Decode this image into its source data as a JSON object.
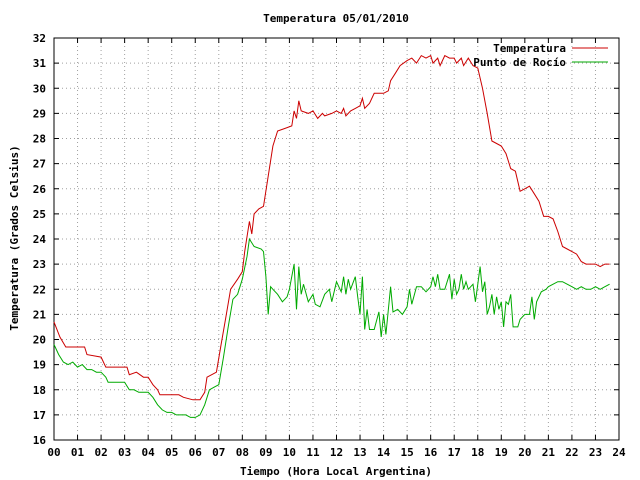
{
  "chart_data": {
    "type": "line",
    "title": "Temperatura 05/01/2010",
    "xlabel": "Tiempo (Hora Local Argentina)",
    "ylabel": "Temperatura (Grados Celsius)",
    "xlim": [
      0,
      24
    ],
    "ylim": [
      16,
      32
    ],
    "x_ticks": [
      "00",
      "01",
      "02",
      "03",
      "04",
      "05",
      "06",
      "07",
      "08",
      "09",
      "10",
      "11",
      "12",
      "13",
      "14",
      "15",
      "16",
      "17",
      "18",
      "19",
      "20",
      "21",
      "22",
      "23",
      "24"
    ],
    "y_ticks": [
      "16",
      "17",
      "18",
      "19",
      "20",
      "21",
      "22",
      "23",
      "24",
      "25",
      "26",
      "27",
      "28",
      "29",
      "30",
      "31",
      "32"
    ],
    "grid": true,
    "legend_position": "top-right",
    "series": [
      {
        "name": "Temperatura",
        "color": "#cc0000",
        "points": [
          [
            0.0,
            20.7
          ],
          [
            0.25,
            20.1
          ],
          [
            0.5,
            19.7
          ],
          [
            1.0,
            19.7
          ],
          [
            1.3,
            19.7
          ],
          [
            1.4,
            19.4
          ],
          [
            2.0,
            19.3
          ],
          [
            2.2,
            18.9
          ],
          [
            2.8,
            18.9
          ],
          [
            3.1,
            18.9
          ],
          [
            3.2,
            18.6
          ],
          [
            3.5,
            18.7
          ],
          [
            3.8,
            18.5
          ],
          [
            4.0,
            18.5
          ],
          [
            4.2,
            18.2
          ],
          [
            4.4,
            18.0
          ],
          [
            4.5,
            17.8
          ],
          [
            5.0,
            17.8
          ],
          [
            5.3,
            17.8
          ],
          [
            5.5,
            17.7
          ],
          [
            5.9,
            17.6
          ],
          [
            6.2,
            17.6
          ],
          [
            6.4,
            17.9
          ],
          [
            6.5,
            18.5
          ],
          [
            6.9,
            18.7
          ],
          [
            7.1,
            19.8
          ],
          [
            7.3,
            20.9
          ],
          [
            7.5,
            22.0
          ],
          [
            7.8,
            22.4
          ],
          [
            8.0,
            22.7
          ],
          [
            8.1,
            23.5
          ],
          [
            8.3,
            24.7
          ],
          [
            8.4,
            24.2
          ],
          [
            8.5,
            25.0
          ],
          [
            8.7,
            25.2
          ],
          [
            8.9,
            25.3
          ],
          [
            9.1,
            26.5
          ],
          [
            9.3,
            27.7
          ],
          [
            9.5,
            28.3
          ],
          [
            9.8,
            28.4
          ],
          [
            10.1,
            28.5
          ],
          [
            10.2,
            29.1
          ],
          [
            10.3,
            28.8
          ],
          [
            10.4,
            29.5
          ],
          [
            10.5,
            29.1
          ],
          [
            10.8,
            29.0
          ],
          [
            11.0,
            29.1
          ],
          [
            11.2,
            28.8
          ],
          [
            11.4,
            29.0
          ],
          [
            11.5,
            28.9
          ],
          [
            11.8,
            29.0
          ],
          [
            12.0,
            29.1
          ],
          [
            12.2,
            29.0
          ],
          [
            12.3,
            29.2
          ],
          [
            12.4,
            28.9
          ],
          [
            12.6,
            29.1
          ],
          [
            12.8,
            29.2
          ],
          [
            13.0,
            29.3
          ],
          [
            13.1,
            29.6
          ],
          [
            13.2,
            29.2
          ],
          [
            13.4,
            29.4
          ],
          [
            13.6,
            29.8
          ],
          [
            14.0,
            29.8
          ],
          [
            14.2,
            29.9
          ],
          [
            14.3,
            30.3
          ],
          [
            14.5,
            30.6
          ],
          [
            14.7,
            30.9
          ],
          [
            15.0,
            31.1
          ],
          [
            15.2,
            31.2
          ],
          [
            15.4,
            31.0
          ],
          [
            15.6,
            31.3
          ],
          [
            15.8,
            31.2
          ],
          [
            16.0,
            31.3
          ],
          [
            16.1,
            31.0
          ],
          [
            16.3,
            31.2
          ],
          [
            16.4,
            30.9
          ],
          [
            16.6,
            31.3
          ],
          [
            16.8,
            31.2
          ],
          [
            17.0,
            31.2
          ],
          [
            17.1,
            31.0
          ],
          [
            17.3,
            31.2
          ],
          [
            17.4,
            30.9
          ],
          [
            17.6,
            31.2
          ],
          [
            17.8,
            30.9
          ],
          [
            18.0,
            30.8
          ],
          [
            18.2,
            30.0
          ],
          [
            18.4,
            29.0
          ],
          [
            18.6,
            27.9
          ],
          [
            18.8,
            27.8
          ],
          [
            19.0,
            27.7
          ],
          [
            19.2,
            27.4
          ],
          [
            19.4,
            26.8
          ],
          [
            19.6,
            26.7
          ],
          [
            19.8,
            25.9
          ],
          [
            20.0,
            26.0
          ],
          [
            20.2,
            26.1
          ],
          [
            20.4,
            25.8
          ],
          [
            20.6,
            25.5
          ],
          [
            20.8,
            24.9
          ],
          [
            21.0,
            24.9
          ],
          [
            21.2,
            24.8
          ],
          [
            21.4,
            24.3
          ],
          [
            21.6,
            23.7
          ],
          [
            21.8,
            23.6
          ],
          [
            22.0,
            23.5
          ],
          [
            22.2,
            23.4
          ],
          [
            22.4,
            23.1
          ],
          [
            22.6,
            23.0
          ],
          [
            22.8,
            23.0
          ],
          [
            23.0,
            23.0
          ],
          [
            23.2,
            22.9
          ],
          [
            23.4,
            23.0
          ],
          [
            23.6,
            23.0
          ]
        ]
      },
      {
        "name": "Punto de Rocío",
        "color": "#00aa00",
        "points": [
          [
            0.0,
            19.8
          ],
          [
            0.2,
            19.4
          ],
          [
            0.4,
            19.1
          ],
          [
            0.6,
            19.0
          ],
          [
            0.8,
            19.1
          ],
          [
            1.0,
            18.9
          ],
          [
            1.2,
            19.0
          ],
          [
            1.4,
            18.8
          ],
          [
            1.6,
            18.8
          ],
          [
            1.8,
            18.7
          ],
          [
            2.0,
            18.7
          ],
          [
            2.2,
            18.5
          ],
          [
            2.3,
            18.3
          ],
          [
            2.8,
            18.3
          ],
          [
            3.0,
            18.3
          ],
          [
            3.2,
            18.0
          ],
          [
            3.4,
            18.0
          ],
          [
            3.6,
            17.9
          ],
          [
            3.8,
            17.9
          ],
          [
            4.0,
            17.9
          ],
          [
            4.2,
            17.7
          ],
          [
            4.4,
            17.4
          ],
          [
            4.6,
            17.2
          ],
          [
            4.8,
            17.1
          ],
          [
            5.0,
            17.1
          ],
          [
            5.2,
            17.0
          ],
          [
            5.4,
            17.0
          ],
          [
            5.6,
            17.0
          ],
          [
            5.8,
            16.9
          ],
          [
            6.0,
            16.9
          ],
          [
            6.2,
            17.0
          ],
          [
            6.4,
            17.4
          ],
          [
            6.6,
            18.0
          ],
          [
            6.8,
            18.1
          ],
          [
            7.0,
            18.2
          ],
          [
            7.2,
            19.3
          ],
          [
            7.4,
            20.5
          ],
          [
            7.6,
            21.6
          ],
          [
            7.8,
            21.8
          ],
          [
            8.0,
            22.4
          ],
          [
            8.2,
            23.3
          ],
          [
            8.3,
            24.0
          ],
          [
            8.5,
            23.7
          ],
          [
            8.8,
            23.6
          ],
          [
            8.9,
            23.5
          ],
          [
            9.0,
            22.5
          ],
          [
            9.1,
            21.0
          ],
          [
            9.2,
            22.1
          ],
          [
            9.3,
            22.0
          ],
          [
            9.5,
            21.8
          ],
          [
            9.7,
            21.5
          ],
          [
            9.9,
            21.7
          ],
          [
            10.0,
            22.0
          ],
          [
            10.2,
            23.0
          ],
          [
            10.3,
            21.2
          ],
          [
            10.4,
            22.9
          ],
          [
            10.5,
            21.8
          ],
          [
            10.6,
            22.2
          ],
          [
            10.8,
            21.5
          ],
          [
            11.0,
            21.8
          ],
          [
            11.1,
            21.4
          ],
          [
            11.3,
            21.3
          ],
          [
            11.5,
            21.8
          ],
          [
            11.7,
            22.0
          ],
          [
            11.8,
            21.5
          ],
          [
            12.0,
            22.3
          ],
          [
            12.2,
            21.9
          ],
          [
            12.3,
            22.5
          ],
          [
            12.4,
            21.8
          ],
          [
            12.5,
            22.4
          ],
          [
            12.6,
            22.0
          ],
          [
            12.8,
            22.5
          ],
          [
            12.9,
            21.7
          ],
          [
            13.0,
            21.0
          ],
          [
            13.1,
            22.5
          ],
          [
            13.2,
            20.4
          ],
          [
            13.3,
            21.2
          ],
          [
            13.4,
            20.4
          ],
          [
            13.6,
            20.4
          ],
          [
            13.8,
            21.1
          ],
          [
            13.9,
            20.1
          ],
          [
            14.0,
            21.0
          ],
          [
            14.1,
            20.2
          ],
          [
            14.3,
            22.1
          ],
          [
            14.4,
            21.1
          ],
          [
            14.6,
            21.2
          ],
          [
            14.8,
            21.0
          ],
          [
            15.0,
            21.3
          ],
          [
            15.1,
            22.0
          ],
          [
            15.2,
            21.4
          ],
          [
            15.4,
            22.1
          ],
          [
            15.6,
            22.1
          ],
          [
            15.8,
            21.9
          ],
          [
            16.0,
            22.1
          ],
          [
            16.1,
            22.5
          ],
          [
            16.2,
            22.1
          ],
          [
            16.3,
            22.6
          ],
          [
            16.4,
            22.0
          ],
          [
            16.6,
            22.0
          ],
          [
            16.8,
            22.6
          ],
          [
            16.9,
            21.6
          ],
          [
            17.0,
            22.4
          ],
          [
            17.1,
            21.8
          ],
          [
            17.2,
            22.0
          ],
          [
            17.3,
            22.6
          ],
          [
            17.4,
            22.0
          ],
          [
            17.5,
            22.3
          ],
          [
            17.6,
            22.0
          ],
          [
            17.8,
            22.2
          ],
          [
            17.9,
            21.5
          ],
          [
            18.0,
            22.2
          ],
          [
            18.1,
            22.9
          ],
          [
            18.2,
            21.9
          ],
          [
            18.3,
            22.3
          ],
          [
            18.4,
            21.0
          ],
          [
            18.5,
            21.3
          ],
          [
            18.6,
            21.8
          ],
          [
            18.7,
            21.0
          ],
          [
            18.8,
            21.7
          ],
          [
            18.9,
            21.2
          ],
          [
            19.0,
            21.5
          ],
          [
            19.1,
            20.5
          ],
          [
            19.2,
            21.5
          ],
          [
            19.3,
            21.4
          ],
          [
            19.4,
            21.8
          ],
          [
            19.5,
            20.5
          ],
          [
            19.7,
            20.5
          ],
          [
            19.8,
            20.8
          ],
          [
            20.0,
            21.0
          ],
          [
            20.2,
            21.0
          ],
          [
            20.3,
            21.7
          ],
          [
            20.4,
            20.8
          ],
          [
            20.5,
            21.5
          ],
          [
            20.7,
            21.9
          ],
          [
            20.9,
            22.0
          ],
          [
            21.0,
            22.1
          ],
          [
            21.2,
            22.2
          ],
          [
            21.4,
            22.3
          ],
          [
            21.6,
            22.3
          ],
          [
            21.8,
            22.2
          ],
          [
            22.0,
            22.1
          ],
          [
            22.2,
            22.0
          ],
          [
            22.4,
            22.1
          ],
          [
            22.6,
            22.0
          ],
          [
            22.8,
            22.0
          ],
          [
            23.0,
            22.1
          ],
          [
            23.2,
            22.0
          ],
          [
            23.4,
            22.1
          ],
          [
            23.6,
            22.2
          ]
        ]
      }
    ]
  }
}
